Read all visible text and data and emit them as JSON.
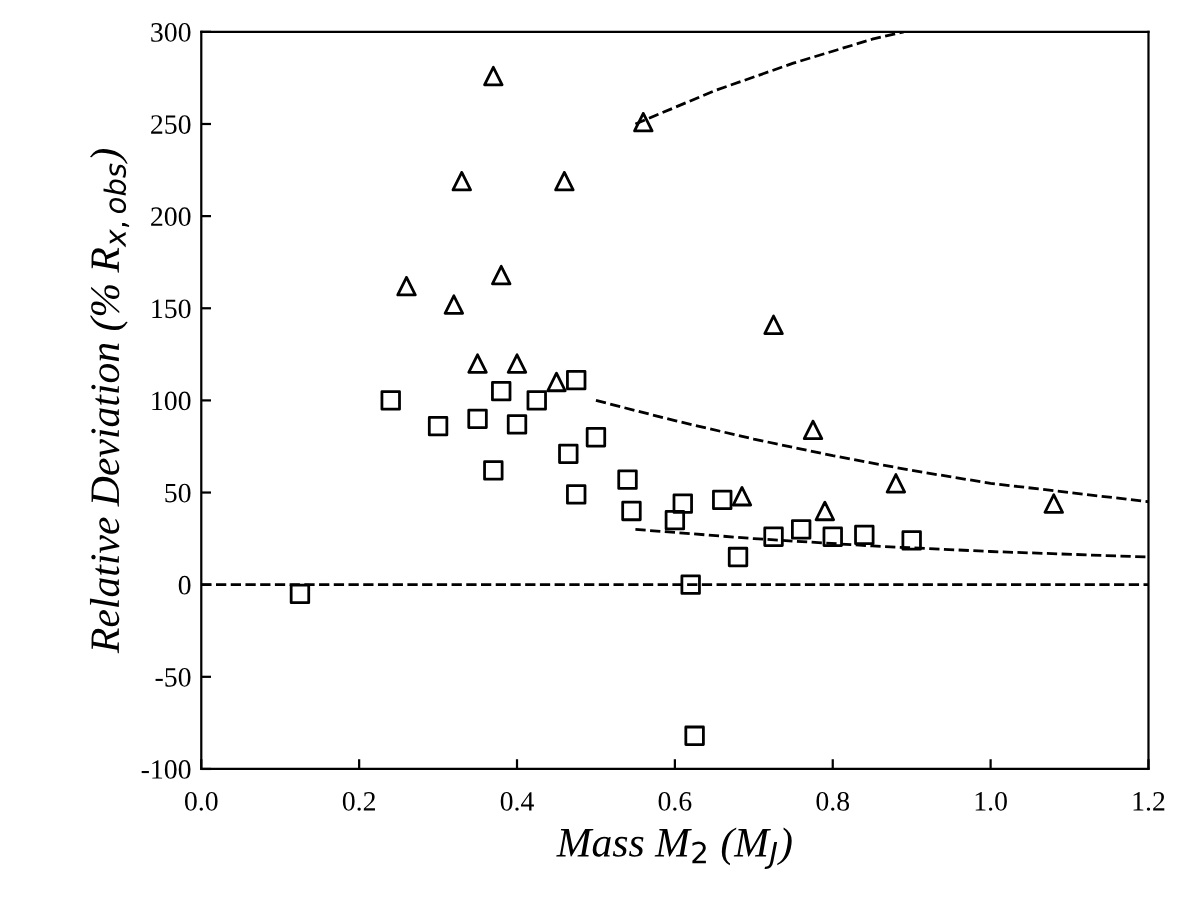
{
  "chart_data": {
    "type": "scatter",
    "xlabel": "Mass M$_{2}$ (M$_{J}$)",
    "ylabel": "Relative Deviation (% R$_{x,obs}$)",
    "xlim": [
      0.0,
      1.2
    ],
    "ylim": [
      -100,
      300
    ],
    "xticks": [
      {
        "value": 0.0,
        "label": "0.0"
      },
      {
        "value": 0.2,
        "label": "0.2"
      },
      {
        "value": 0.4,
        "label": "0.4"
      },
      {
        "value": 0.6,
        "label": "0.6"
      },
      {
        "value": 0.8,
        "label": "0.8"
      },
      {
        "value": 1.0,
        "label": "1.0"
      },
      {
        "value": 1.2,
        "label": "1.2"
      }
    ],
    "yticks": [
      -100,
      -50,
      0,
      50,
      100,
      150,
      200,
      250,
      300
    ],
    "grid": false,
    "legend": false,
    "ref_lines": [
      {
        "axis": "y",
        "value": 0,
        "color": "#000000",
        "line_style": "dashed"
      }
    ],
    "series": [
      {
        "marker": "triangle",
        "color": "#000000",
        "x": [
          0.37,
          0.33,
          0.46,
          0.56,
          0.38,
          0.26,
          0.32,
          0.35,
          0.725,
          0.88,
          1.08,
          0.685,
          0.79,
          0.775,
          0.4,
          0.45
        ],
        "values": [
          276,
          219,
          219,
          251,
          168,
          162,
          152,
          120,
          141,
          55,
          44,
          48,
          40,
          84,
          120,
          110
        ]
      },
      {
        "marker": "square",
        "color": "#000000",
        "x": [
          0.37,
          0.465,
          0.475,
          0.54,
          0.545,
          0.61,
          0.6,
          0.66,
          0.68,
          0.62,
          0.625,
          0.125,
          0.4,
          0.425,
          0.475,
          0.38,
          0.5,
          0.725,
          0.76,
          0.8,
          0.84,
          0.9,
          0.35,
          0.3,
          0.24
        ],
        "values": [
          62,
          71,
          49,
          57,
          40,
          44,
          35,
          46,
          15,
          0,
          -82,
          -5,
          87,
          100,
          111,
          105,
          80,
          26,
          30,
          26,
          27,
          24,
          90,
          86,
          100
        ]
      },
      {
        "type": "line",
        "line_style": "dashed",
        "color": "#000000",
        "x": [
          0.55,
          0.65,
          0.75,
          0.85,
          0.89
        ],
        "values": [
          250,
          268,
          283,
          296,
          300
        ]
      },
      {
        "type": "line",
        "line_style": "dashed",
        "color": "#000000",
        "x": [
          0.5,
          0.6,
          0.7,
          0.8,
          0.9,
          1.0,
          1.1,
          1.2
        ],
        "values": [
          100,
          89,
          79,
          70,
          62,
          55,
          50,
          45
        ]
      },
      {
        "type": "line",
        "line_style": "dashed",
        "color": "#000000",
        "x": [
          0.55,
          0.7,
          0.85,
          1.0,
          1.2
        ],
        "values": [
          30,
          25,
          21,
          18,
          15
        ]
      }
    ]
  }
}
